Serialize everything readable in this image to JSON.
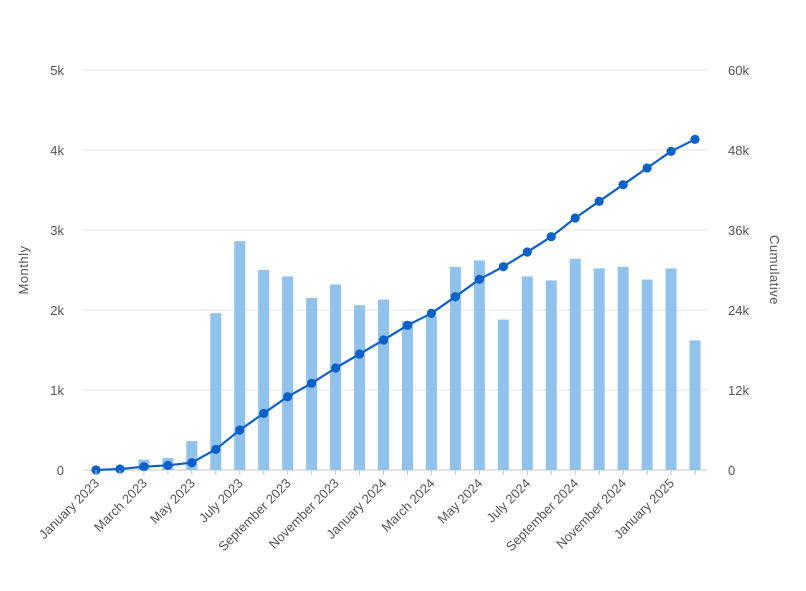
{
  "chart_data": {
    "type": "bar",
    "categories": [
      "January 2023",
      "February 2023",
      "March 2023",
      "April 2023",
      "May 2023",
      "June 2023",
      "July 2023",
      "August 2023",
      "September 2023",
      "October 2023",
      "November 2023",
      "December 2023",
      "January 2024",
      "February 2024",
      "March 2024",
      "April 2024",
      "May 2024",
      "June 2024",
      "July 2024",
      "August 2024",
      "September 2024",
      "October 2024",
      "November 2024",
      "December 2024",
      "January 2025",
      "February 2025"
    ],
    "x_tick_labels": [
      "January 2023",
      "March 2023",
      "May 2023",
      "July 2023",
      "September 2023",
      "November 2023",
      "January 2024",
      "March 2024",
      "May 2024",
      "July 2024",
      "September 2024",
      "November 2024",
      "January 2025"
    ],
    "series": [
      {
        "name": "Monthly",
        "type": "bar",
        "axis": "left",
        "color": "#90c2eb",
        "values": [
          0,
          0,
          130,
          150,
          360,
          1960,
          2860,
          2500,
          2420,
          2150,
          2320,
          2060,
          2130,
          1860,
          1920,
          2540,
          2620,
          1880,
          2420,
          2370,
          2640,
          2520,
          2540,
          2380,
          2520,
          1620
        ]
      },
      {
        "name": "Cumulative",
        "type": "line",
        "axis": "right",
        "color": "#0b61c7",
        "values": [
          0,
          150,
          500,
          700,
          1100,
          3100,
          6000,
          8500,
          11000,
          13000,
          15300,
          17400,
          19500,
          21700,
          23500,
          26000,
          28600,
          30500,
          32700,
          35000,
          37800,
          40300,
          42800,
          45300,
          47800,
          49600
        ]
      }
    ],
    "y_left": {
      "label": "Monthly",
      "min": 0,
      "max": 5000,
      "ticks": [
        0,
        1000,
        2000,
        3000,
        4000,
        5000
      ],
      "tick_labels": [
        "0",
        "1k",
        "2k",
        "3k",
        "4k",
        "5k"
      ]
    },
    "y_right": {
      "label": "Cumulative",
      "min": 0,
      "max": 60000,
      "ticks": [
        0,
        12000,
        24000,
        36000,
        48000,
        60000
      ],
      "tick_labels": [
        "0",
        "12k",
        "24k",
        "36k",
        "48k",
        "60k"
      ]
    },
    "grid": true,
    "legend": "none"
  }
}
